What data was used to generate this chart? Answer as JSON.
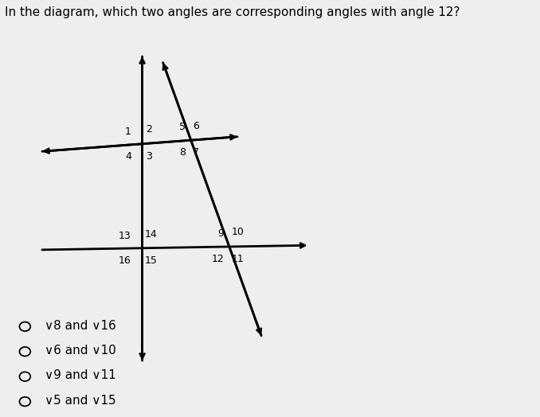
{
  "title": "In the diagram, which two angles are corresponding angles with angle 12?",
  "background_color": "#eeeeee",
  "text_color": "#000000",
  "line_color": "#000000",
  "figsize": [
    6.78,
    5.24
  ],
  "dpi": 100,
  "choices": [
    "∨8 and ∨16",
    "∨6 and ∨10",
    "∨9 and ∨11",
    "∨5 and ∨15"
  ],
  "font_size_label": 9,
  "font_size_choice": 11,
  "font_size_title": 11
}
